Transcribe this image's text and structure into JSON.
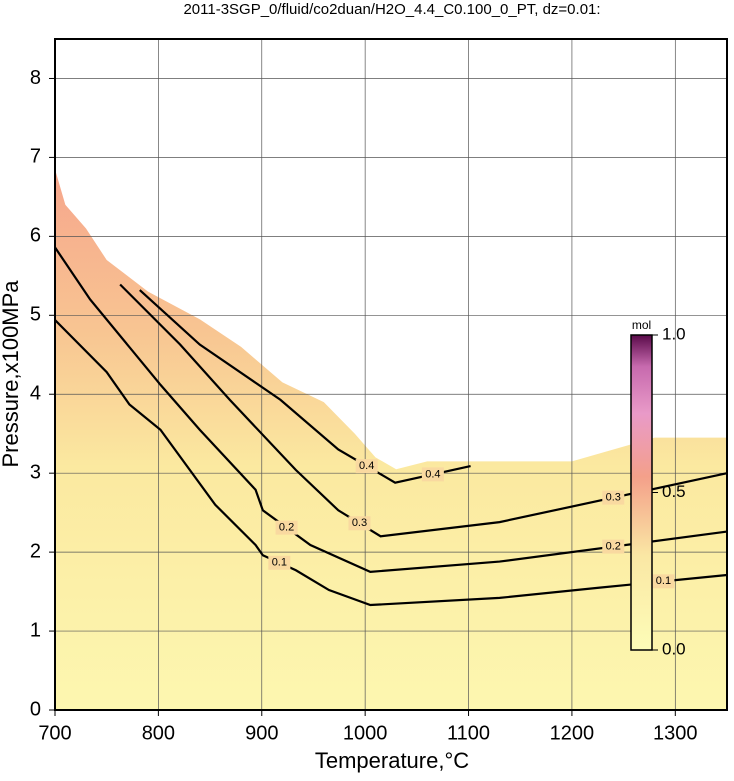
{
  "chart_data": {
    "type": "contour",
    "title": "2011-3SGP_0/fluid/co2duan/H2O_4.4_C0.100_0_PT, dz=0.01:",
    "x_label": "Temperature,°C",
    "y_label": "Pressure,x100MPa",
    "xlim": [
      700,
      1350
    ],
    "ylim": [
      0,
      8.5
    ],
    "xticks": [
      700,
      800,
      900,
      1000,
      1100,
      1200,
      1300
    ],
    "yticks": [
      0,
      1,
      2,
      3,
      4,
      5,
      6,
      7,
      8
    ],
    "grid": true,
    "boundary": {
      "x": [
        700,
        710,
        730,
        750,
        790,
        840,
        880,
        920,
        960,
        990,
        1010,
        1030,
        1060,
        1200,
        1280,
        1350
      ],
      "y": [
        6.85,
        6.4,
        6.1,
        5.7,
        5.3,
        4.95,
        4.6,
        4.15,
        3.9,
        3.5,
        3.2,
        3.05,
        3.15,
        3.15,
        3.45,
        3.45
      ]
    },
    "contours": [
      {
        "level": 0.1,
        "x": [
          700,
          750,
          772,
          802,
          855,
          894,
          901,
          933,
          965,
          1005,
          1130,
          1227,
          1350
        ],
        "y": [
          4.94,
          4.28,
          3.87,
          3.55,
          2.6,
          2.09,
          1.96,
          1.77,
          1.52,
          1.33,
          1.42,
          1.55,
          1.71
        ]
      },
      {
        "level": 0.2,
        "x": [
          700,
          734,
          802,
          840,
          894,
          901,
          947,
          1005,
          1130,
          1350
        ],
        "y": [
          5.86,
          5.2,
          4.12,
          3.55,
          2.79,
          2.53,
          2.09,
          1.75,
          1.88,
          2.26
        ]
      },
      {
        "level": 0.3,
        "x": [
          763,
          821,
          869,
          933,
          974,
          1015,
          1130,
          1350
        ],
        "y": [
          5.39,
          4.63,
          3.93,
          3.04,
          2.53,
          2.2,
          2.38,
          3.0
        ]
      },
      {
        "level": 0.4,
        "x": [
          782,
          840,
          918,
          974,
          1029,
          1102
        ],
        "y": [
          5.32,
          4.63,
          3.93,
          3.3,
          2.88,
          3.09
        ]
      }
    ],
    "colorbar": {
      "label": "mol",
      "lim": [
        0,
        1
      ],
      "ticks": [
        {
          "value": 0,
          "label": "0.0"
        },
        {
          "value": 0.5,
          "label": "0.5"
        },
        {
          "value": 1,
          "label": "1.0"
        }
      ]
    }
  }
}
